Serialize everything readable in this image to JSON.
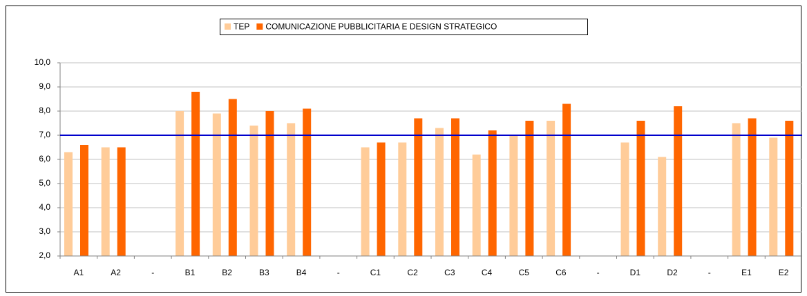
{
  "chart_data": {
    "type": "bar",
    "categories": [
      "A1",
      "A2",
      "-",
      "B1",
      "B2",
      "B3",
      "B4",
      "-",
      "C1",
      "C2",
      "C3",
      "C4",
      "C5",
      "C6",
      "-",
      "D1",
      "D2",
      "-",
      "E1",
      "E2"
    ],
    "series": [
      {
        "name": "TEP",
        "color": "#ffcc99",
        "values": [
          6.3,
          6.5,
          null,
          8.0,
          7.9,
          7.4,
          7.5,
          null,
          6.5,
          6.7,
          7.3,
          6.2,
          7.0,
          7.6,
          null,
          6.7,
          6.1,
          null,
          7.5,
          6.9
        ]
      },
      {
        "name": "COMUNICAZIONE PUBBLICITARIA E DESIGN STRATEGICO",
        "color": "#ff6600",
        "values": [
          6.6,
          6.5,
          null,
          8.8,
          8.5,
          8.0,
          8.1,
          null,
          6.7,
          7.7,
          7.7,
          7.2,
          7.6,
          8.3,
          null,
          7.6,
          8.2,
          null,
          7.7,
          7.6
        ]
      }
    ],
    "ylim": [
      2,
      10
    ],
    "yticks": [
      {
        "value": 2,
        "label": "2,0"
      },
      {
        "value": 3,
        "label": "3,0"
      },
      {
        "value": 4,
        "label": "4,0"
      },
      {
        "value": 5,
        "label": "5,0"
      },
      {
        "value": 6,
        "label": "6,0"
      },
      {
        "value": 7,
        "label": "7,0"
      },
      {
        "value": 8,
        "label": "8,0"
      },
      {
        "value": 9,
        "label": "9,0"
      },
      {
        "value": 10,
        "label": "10,0"
      }
    ],
    "grid": true,
    "reference_line": {
      "value": 7,
      "color": "#0000cc"
    },
    "legend": "top"
  }
}
